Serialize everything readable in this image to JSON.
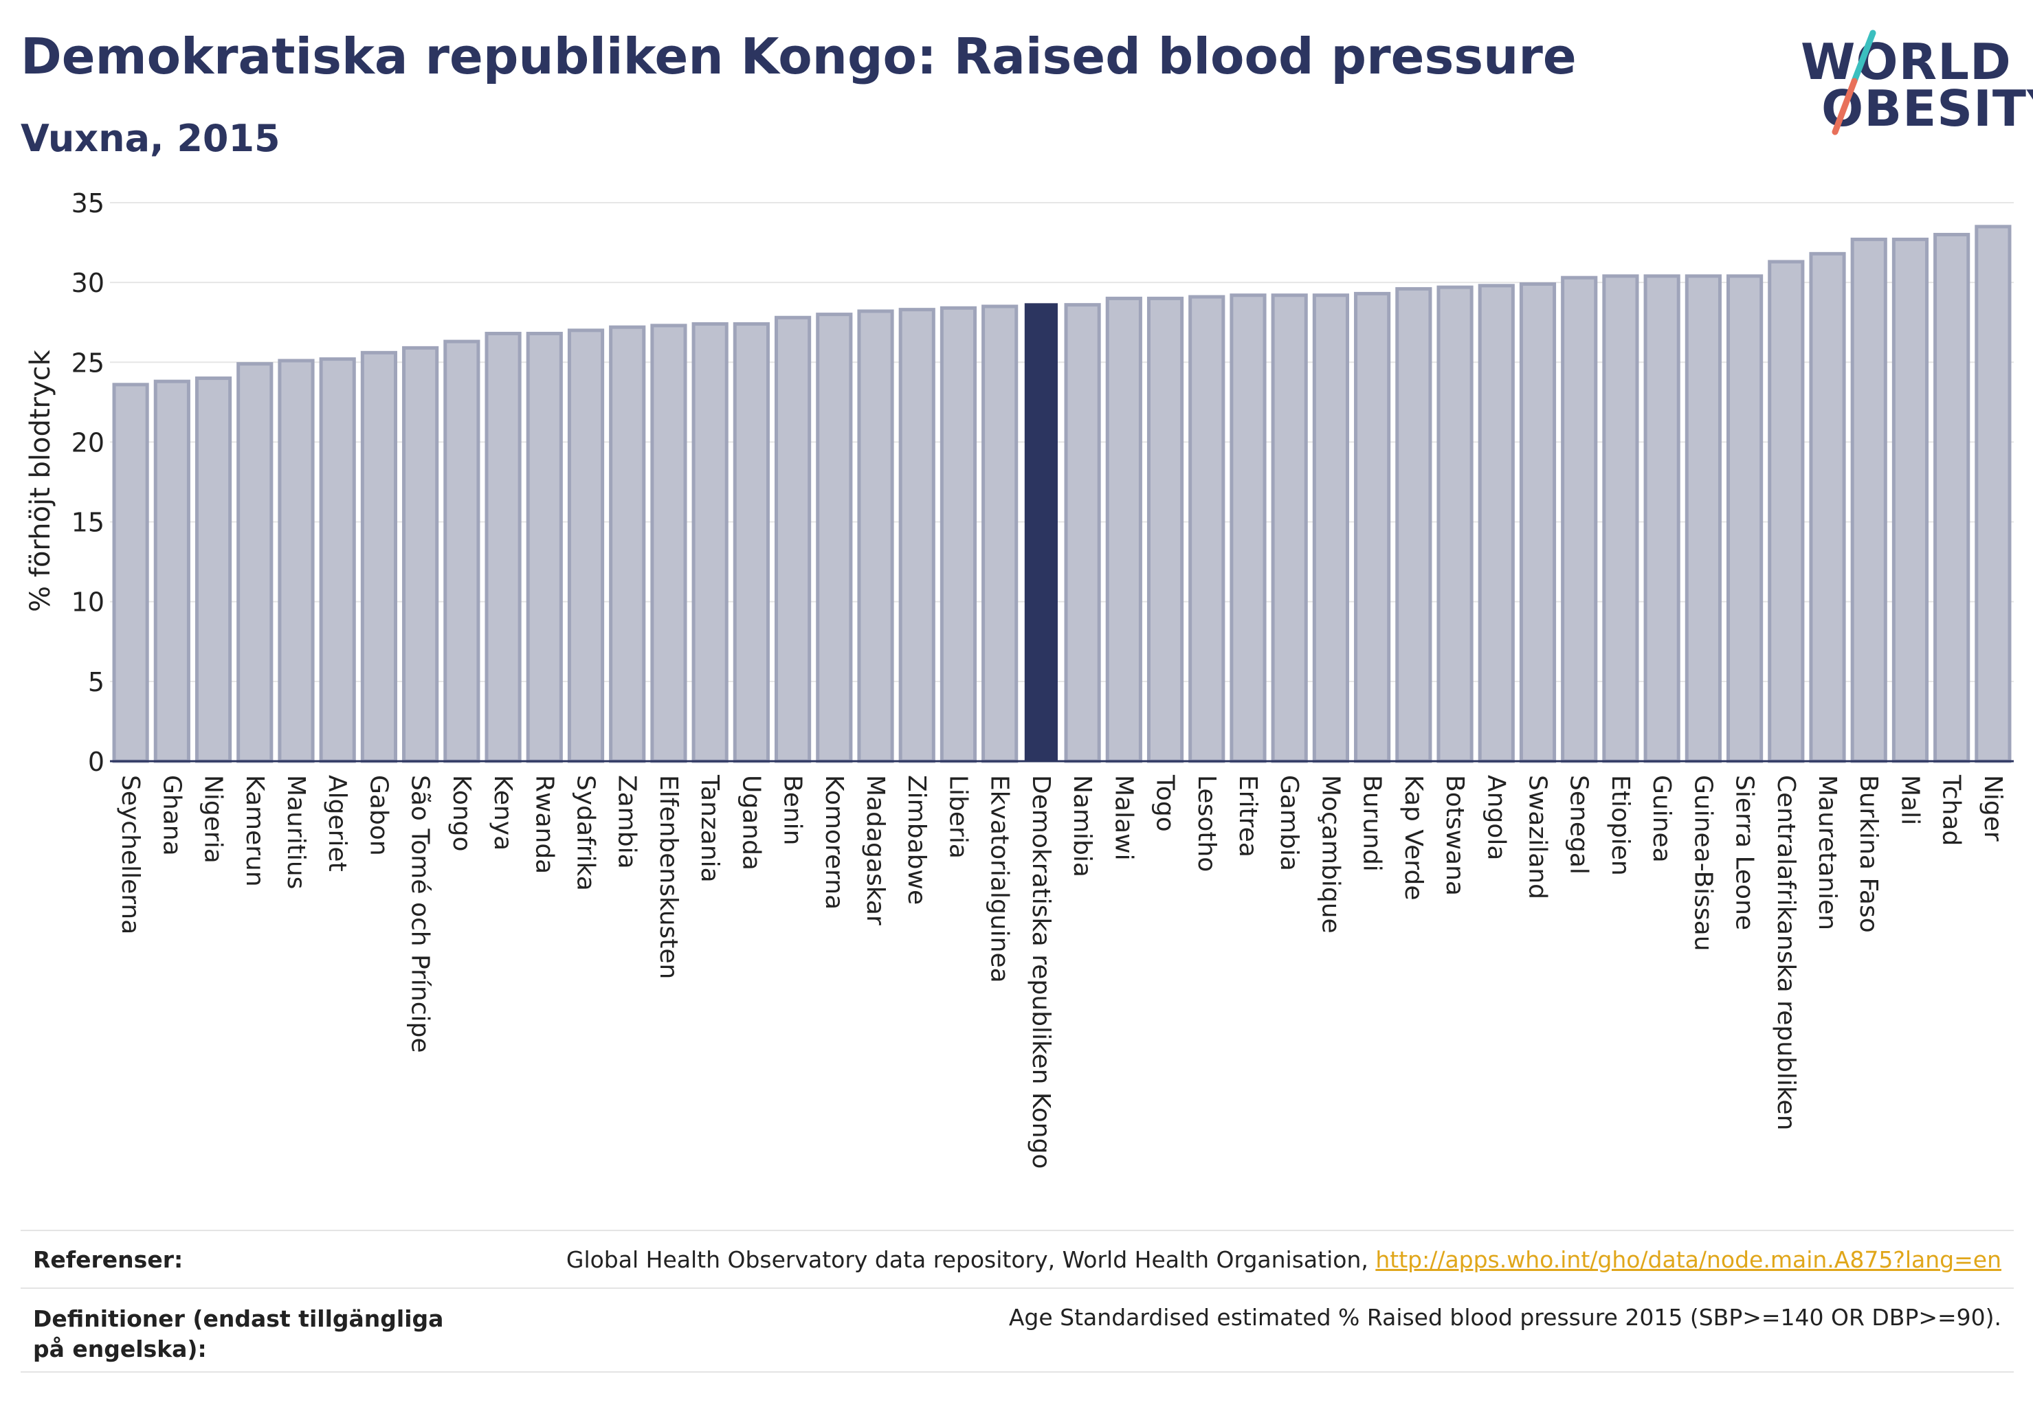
{
  "header": {
    "title": "Demokratiska republiken Kongo: Raised blood pressure",
    "subtitle": "Vuxna, 2015"
  },
  "logo": {
    "line1": "WORLD",
    "line2": "OBESITY",
    "colors": {
      "text": "#2c3560",
      "slash_top": "#3bbfbf",
      "slash_bottom": "#e8705a"
    }
  },
  "colors": {
    "bar_fill": "#bec1cf",
    "bar_stroke": "#9fa4ba",
    "highlight": "#2c3560",
    "grid": "#e6e6e6",
    "axis": "#2c3560"
  },
  "chart_data": {
    "type": "bar",
    "title": "Demokratiska republiken Kongo: Raised blood pressure",
    "subtitle": "Vuxna, 2015",
    "xlabel": "",
    "ylabel": "% förhöjt blodtryck",
    "ylim": [
      0,
      35
    ],
    "yticks": [
      0,
      5,
      10,
      15,
      20,
      25,
      30,
      35
    ],
    "grid": true,
    "highlight_category": "Demokratiska republiken Kongo",
    "categories": [
      "Seychellerna",
      "Ghana",
      "Nigeria",
      "Kamerun",
      "Mauritius",
      "Algeriet",
      "Gabon",
      "São Tomé och Príncipe",
      "Kongo",
      "Kenya",
      "Rwanda",
      "Sydafrika",
      "Zambia",
      "Elfenbenskusten",
      "Tanzania",
      "Uganda",
      "Benin",
      "Komorerna",
      "Madagaskar",
      "Zimbabwe",
      "Liberia",
      "Ekvatorialguinea",
      "Demokratiska republiken Kongo",
      "Namibia",
      "Malawi",
      "Togo",
      "Lesotho",
      "Eritrea",
      "Gambia",
      "Moçambique",
      "Burundi",
      "Kap Verde",
      "Botswana",
      "Angola",
      "Swaziland",
      "Senegal",
      "Etiopien",
      "Guinea",
      "Guinea-Bissau",
      "Sierra Leone",
      "Centralafrikanska republiken",
      "Mauretanien",
      "Burkina Faso",
      "Mali",
      "Tchad",
      "Niger"
    ],
    "values": [
      23.6,
      23.8,
      24.0,
      24.9,
      25.1,
      25.2,
      25.6,
      25.9,
      26.3,
      26.8,
      26.8,
      27.0,
      27.2,
      27.3,
      27.4,
      27.4,
      27.8,
      28.0,
      28.2,
      28.3,
      28.4,
      28.5,
      28.7,
      28.6,
      29.0,
      29.0,
      29.1,
      29.2,
      29.2,
      29.2,
      29.3,
      29.6,
      29.7,
      29.8,
      29.9,
      30.3,
      30.4,
      30.4,
      30.4,
      30.4,
      31.3,
      31.8,
      32.7,
      32.7,
      33.0,
      33.5
    ]
  },
  "footer": {
    "references_label": "Referenser:",
    "references_text": "Global Health Observatory data repository, World Health Organisation, ",
    "references_link": "http://apps.who.int/gho/data/node.main.A875?lang=en",
    "definitions_label": "Definitioner (endast tillgängliga på engelska):",
    "definitions_text": "Age Standardised estimated % Raised blood pressure 2015 (SBP>=140 OR DBP>=90)."
  }
}
